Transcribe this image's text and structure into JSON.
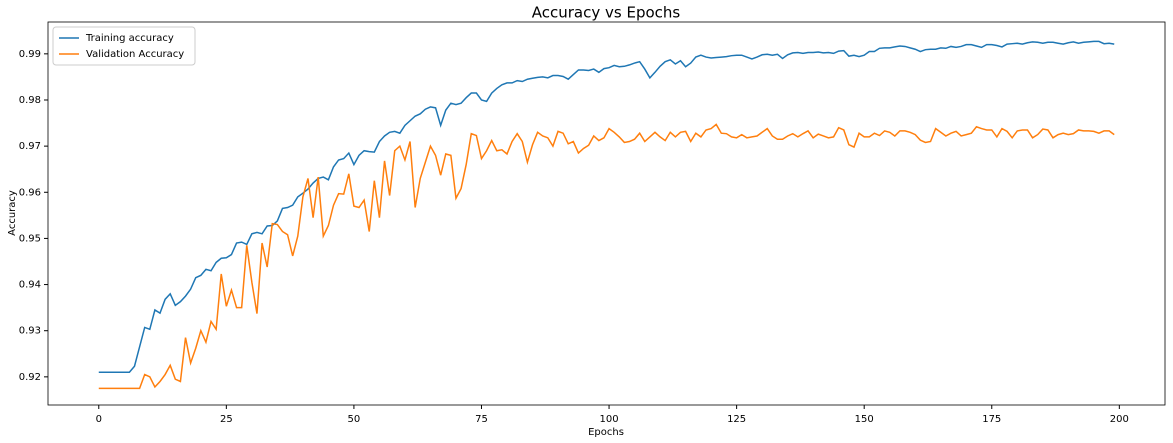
{
  "chart_data": {
    "type": "line",
    "title": "Accuracy vs Epochs",
    "xlabel": "Epochs",
    "ylabel": "Accuracy",
    "x": [
      0,
      1,
      2,
      3,
      4,
      5,
      6,
      7,
      8,
      9,
      10,
      11,
      12,
      13,
      14,
      15,
      16,
      17,
      18,
      19,
      20,
      21,
      22,
      23,
      24,
      25,
      26,
      27,
      28,
      29,
      30,
      31,
      32,
      33,
      34,
      35,
      36,
      37,
      38,
      39,
      40,
      41,
      42,
      43,
      44,
      45,
      46,
      47,
      48,
      49,
      50,
      51,
      52,
      53,
      54,
      55,
      56,
      57,
      58,
      59,
      60,
      61,
      62,
      63,
      64,
      65,
      66,
      67,
      68,
      69,
      70,
      71,
      72,
      73,
      74,
      75,
      76,
      77,
      78,
      79,
      80,
      81,
      82,
      83,
      84,
      85,
      86,
      87,
      88,
      89,
      90,
      91,
      92,
      93,
      94,
      95,
      96,
      97,
      98,
      99,
      100,
      101,
      102,
      103,
      104,
      105,
      106,
      107,
      108,
      109,
      110,
      111,
      112,
      113,
      114,
      115,
      116,
      117,
      118,
      119,
      120,
      121,
      122,
      123,
      124,
      125,
      126,
      127,
      128,
      129,
      130,
      131,
      132,
      133,
      134,
      135,
      136,
      137,
      138,
      139,
      140,
      141,
      142,
      143,
      144,
      145,
      146,
      147,
      148,
      149,
      150,
      151,
      152,
      153,
      154,
      155,
      156,
      157,
      158,
      159,
      160,
      161,
      162,
      163,
      164,
      165,
      166,
      167,
      168,
      169,
      170,
      171,
      172,
      173,
      174,
      175,
      176,
      177,
      178,
      179,
      180,
      181,
      182,
      183,
      184,
      185,
      186,
      187,
      188,
      189,
      190,
      191,
      192,
      193,
      194,
      195,
      196,
      197,
      198,
      199
    ],
    "series": [
      {
        "name": "Training accuracy",
        "color": "#1f77b4",
        "values": [
          0.921,
          0.921,
          0.921,
          0.921,
          0.921,
          0.921,
          0.921,
          0.9223,
          0.9265,
          0.9307,
          0.9303,
          0.9345,
          0.9338,
          0.9368,
          0.938,
          0.9355,
          0.9363,
          0.9375,
          0.939,
          0.9415,
          0.942,
          0.9433,
          0.943,
          0.9448,
          0.9457,
          0.9458,
          0.9465,
          0.949,
          0.9492,
          0.9487,
          0.951,
          0.9513,
          0.951,
          0.9527,
          0.9528,
          0.9538,
          0.9565,
          0.9567,
          0.9572,
          0.959,
          0.9598,
          0.9607,
          0.962,
          0.963,
          0.9633,
          0.9627,
          0.9655,
          0.967,
          0.9673,
          0.9685,
          0.966,
          0.968,
          0.969,
          0.9688,
          0.9687,
          0.971,
          0.9722,
          0.973,
          0.9732,
          0.9728,
          0.9745,
          0.9755,
          0.9765,
          0.977,
          0.978,
          0.9785,
          0.9783,
          0.9745,
          0.9778,
          0.9793,
          0.979,
          0.9793,
          0.9805,
          0.9815,
          0.9815,
          0.98,
          0.9797,
          0.9815,
          0.9825,
          0.9833,
          0.9837,
          0.9837,
          0.9842,
          0.984,
          0.9845,
          0.9847,
          0.9849,
          0.985,
          0.9848,
          0.9853,
          0.9853,
          0.9851,
          0.9845,
          0.9855,
          0.9865,
          0.9865,
          0.9864,
          0.9867,
          0.986,
          0.9868,
          0.987,
          0.9875,
          0.9872,
          0.9873,
          0.9876,
          0.988,
          0.9883,
          0.9867,
          0.9848,
          0.986,
          0.9873,
          0.9883,
          0.9887,
          0.9878,
          0.9885,
          0.9872,
          0.988,
          0.9893,
          0.9897,
          0.9893,
          0.9891,
          0.9892,
          0.9893,
          0.9894,
          0.9896,
          0.9897,
          0.9897,
          0.9893,
          0.9889,
          0.9893,
          0.9898,
          0.9899,
          0.9897,
          0.9899,
          0.989,
          0.9898,
          0.9902,
          0.9903,
          0.9901,
          0.9903,
          0.9903,
          0.9904,
          0.9902,
          0.9903,
          0.9901,
          0.9906,
          0.9907,
          0.9895,
          0.9897,
          0.9894,
          0.9897,
          0.9905,
          0.9905,
          0.9912,
          0.9913,
          0.9913,
          0.9915,
          0.9917,
          0.9916,
          0.9913,
          0.991,
          0.9905,
          0.9909,
          0.991,
          0.991,
          0.9913,
          0.9912,
          0.9916,
          0.9914,
          0.9916,
          0.992,
          0.992,
          0.9917,
          0.9914,
          0.992,
          0.992,
          0.9918,
          0.9915,
          0.9921,
          0.9922,
          0.9923,
          0.9921,
          0.9924,
          0.9926,
          0.9925,
          0.9923,
          0.9925,
          0.9925,
          0.9923,
          0.9921,
          0.9924,
          0.9926,
          0.9923,
          0.9925,
          0.9926,
          0.9927,
          0.9927,
          0.9922,
          0.9923,
          0.9921
        ]
      },
      {
        "name": "Validation Accuracy",
        "color": "#ff7f0e",
        "values": [
          0.9175,
          0.9175,
          0.9175,
          0.9175,
          0.9175,
          0.9175,
          0.9175,
          0.9175,
          0.9175,
          0.9205,
          0.92,
          0.9178,
          0.919,
          0.9205,
          0.9225,
          0.9195,
          0.919,
          0.9285,
          0.923,
          0.9262,
          0.93,
          0.9275,
          0.932,
          0.9303,
          0.9423,
          0.9353,
          0.9388,
          0.935,
          0.935,
          0.9485,
          0.9405,
          0.9337,
          0.949,
          0.9438,
          0.9532,
          0.953,
          0.9515,
          0.9508,
          0.9462,
          0.9505,
          0.959,
          0.963,
          0.9545,
          0.9633,
          0.9505,
          0.9528,
          0.9572,
          0.9597,
          0.9596,
          0.964,
          0.957,
          0.9567,
          0.9583,
          0.9515,
          0.9625,
          0.9545,
          0.9668,
          0.9593,
          0.969,
          0.97,
          0.967,
          0.971,
          0.9567,
          0.963,
          0.9665,
          0.97,
          0.968,
          0.9637,
          0.9683,
          0.968,
          0.9587,
          0.9608,
          0.966,
          0.9727,
          0.9723,
          0.9673,
          0.969,
          0.9712,
          0.969,
          0.9692,
          0.9683,
          0.971,
          0.9727,
          0.971,
          0.9665,
          0.9703,
          0.973,
          0.9722,
          0.9718,
          0.97,
          0.9732,
          0.9728,
          0.9705,
          0.971,
          0.9685,
          0.9695,
          0.9702,
          0.9722,
          0.9712,
          0.9718,
          0.9738,
          0.973,
          0.972,
          0.9708,
          0.971,
          0.9715,
          0.9728,
          0.971,
          0.972,
          0.973,
          0.972,
          0.9712,
          0.973,
          0.972,
          0.973,
          0.9732,
          0.971,
          0.9728,
          0.972,
          0.9735,
          0.9738,
          0.9747,
          0.9728,
          0.9727,
          0.972,
          0.9718,
          0.9725,
          0.9718,
          0.972,
          0.9722,
          0.973,
          0.9738,
          0.9722,
          0.9715,
          0.9715,
          0.9722,
          0.9727,
          0.972,
          0.9727,
          0.9733,
          0.9718,
          0.9726,
          0.9722,
          0.9718,
          0.972,
          0.974,
          0.9735,
          0.9703,
          0.9698,
          0.9728,
          0.972,
          0.972,
          0.9728,
          0.9723,
          0.9733,
          0.973,
          0.9722,
          0.9733,
          0.9733,
          0.973,
          0.9725,
          0.9713,
          0.9708,
          0.971,
          0.9738,
          0.973,
          0.9722,
          0.9728,
          0.9732,
          0.9722,
          0.9725,
          0.9728,
          0.9742,
          0.9738,
          0.9735,
          0.9735,
          0.972,
          0.9738,
          0.9732,
          0.9718,
          0.9733,
          0.9735,
          0.9735,
          0.9718,
          0.9725,
          0.9737,
          0.9735,
          0.9718,
          0.9725,
          0.9728,
          0.9725,
          0.9727,
          0.9735,
          0.9733,
          0.9733,
          0.9732,
          0.9728,
          0.9733,
          0.9733,
          0.9725
        ]
      }
    ],
    "xlim": [
      -9.95,
      208.95
    ],
    "xticks": [
      0,
      25,
      50,
      75,
      100,
      125,
      150,
      175,
      200
    ],
    "ylim": [
      0.9139,
      0.9969
    ],
    "yticks": [
      0.92,
      0.93,
      0.94,
      0.95,
      0.96,
      0.97,
      0.98,
      0.99
    ],
    "legend": "upper left"
  }
}
